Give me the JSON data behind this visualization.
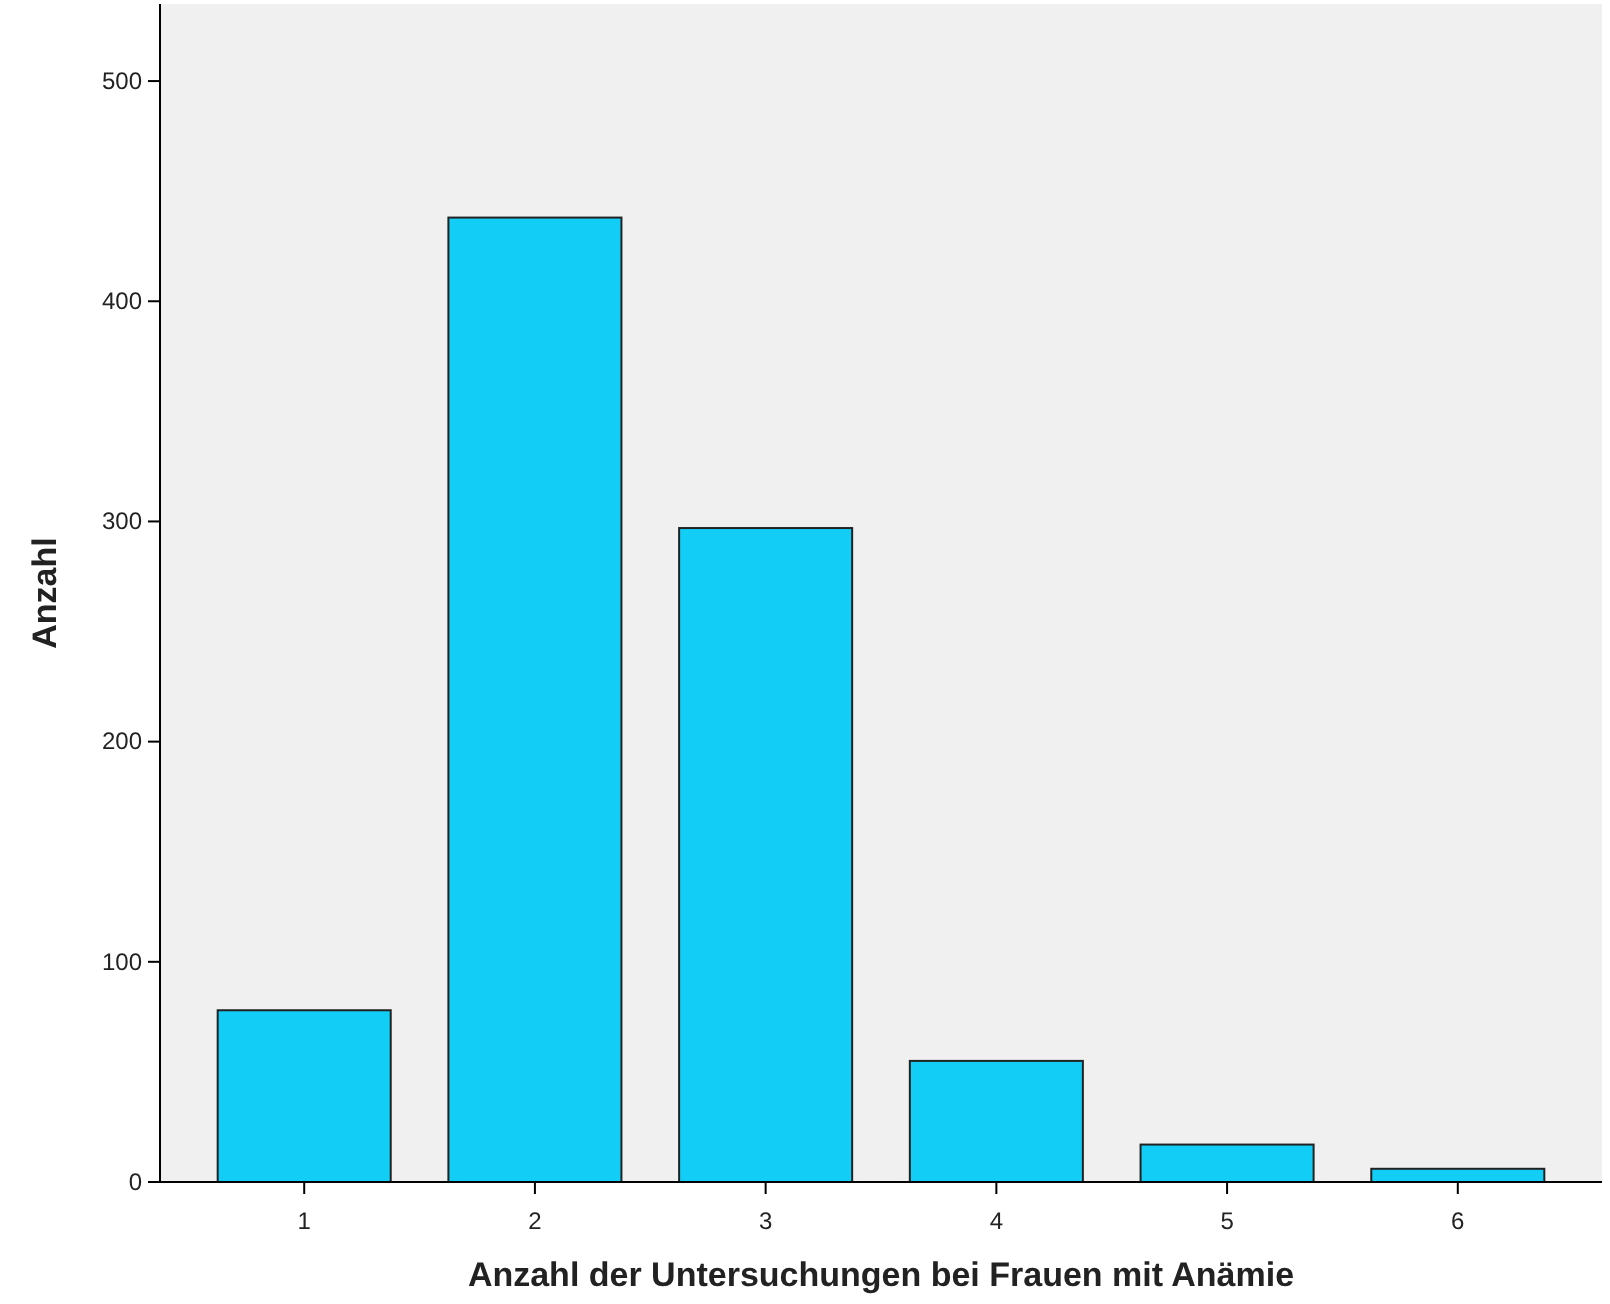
{
  "chart_data": {
    "type": "bar",
    "xlabel": "Anzahl der Untersuchungen bei Frauen mit Anämie",
    "ylabel": "Anzahl",
    "categories": [
      "1",
      "2",
      "3",
      "4",
      "5",
      "6"
    ],
    "values": [
      78,
      438,
      297,
      55,
      17,
      6
    ],
    "color": "#12cdf5",
    "ylim": [
      0,
      535
    ],
    "yticks": [
      0,
      100,
      200,
      300,
      400,
      500
    ],
    "grid": false
  }
}
